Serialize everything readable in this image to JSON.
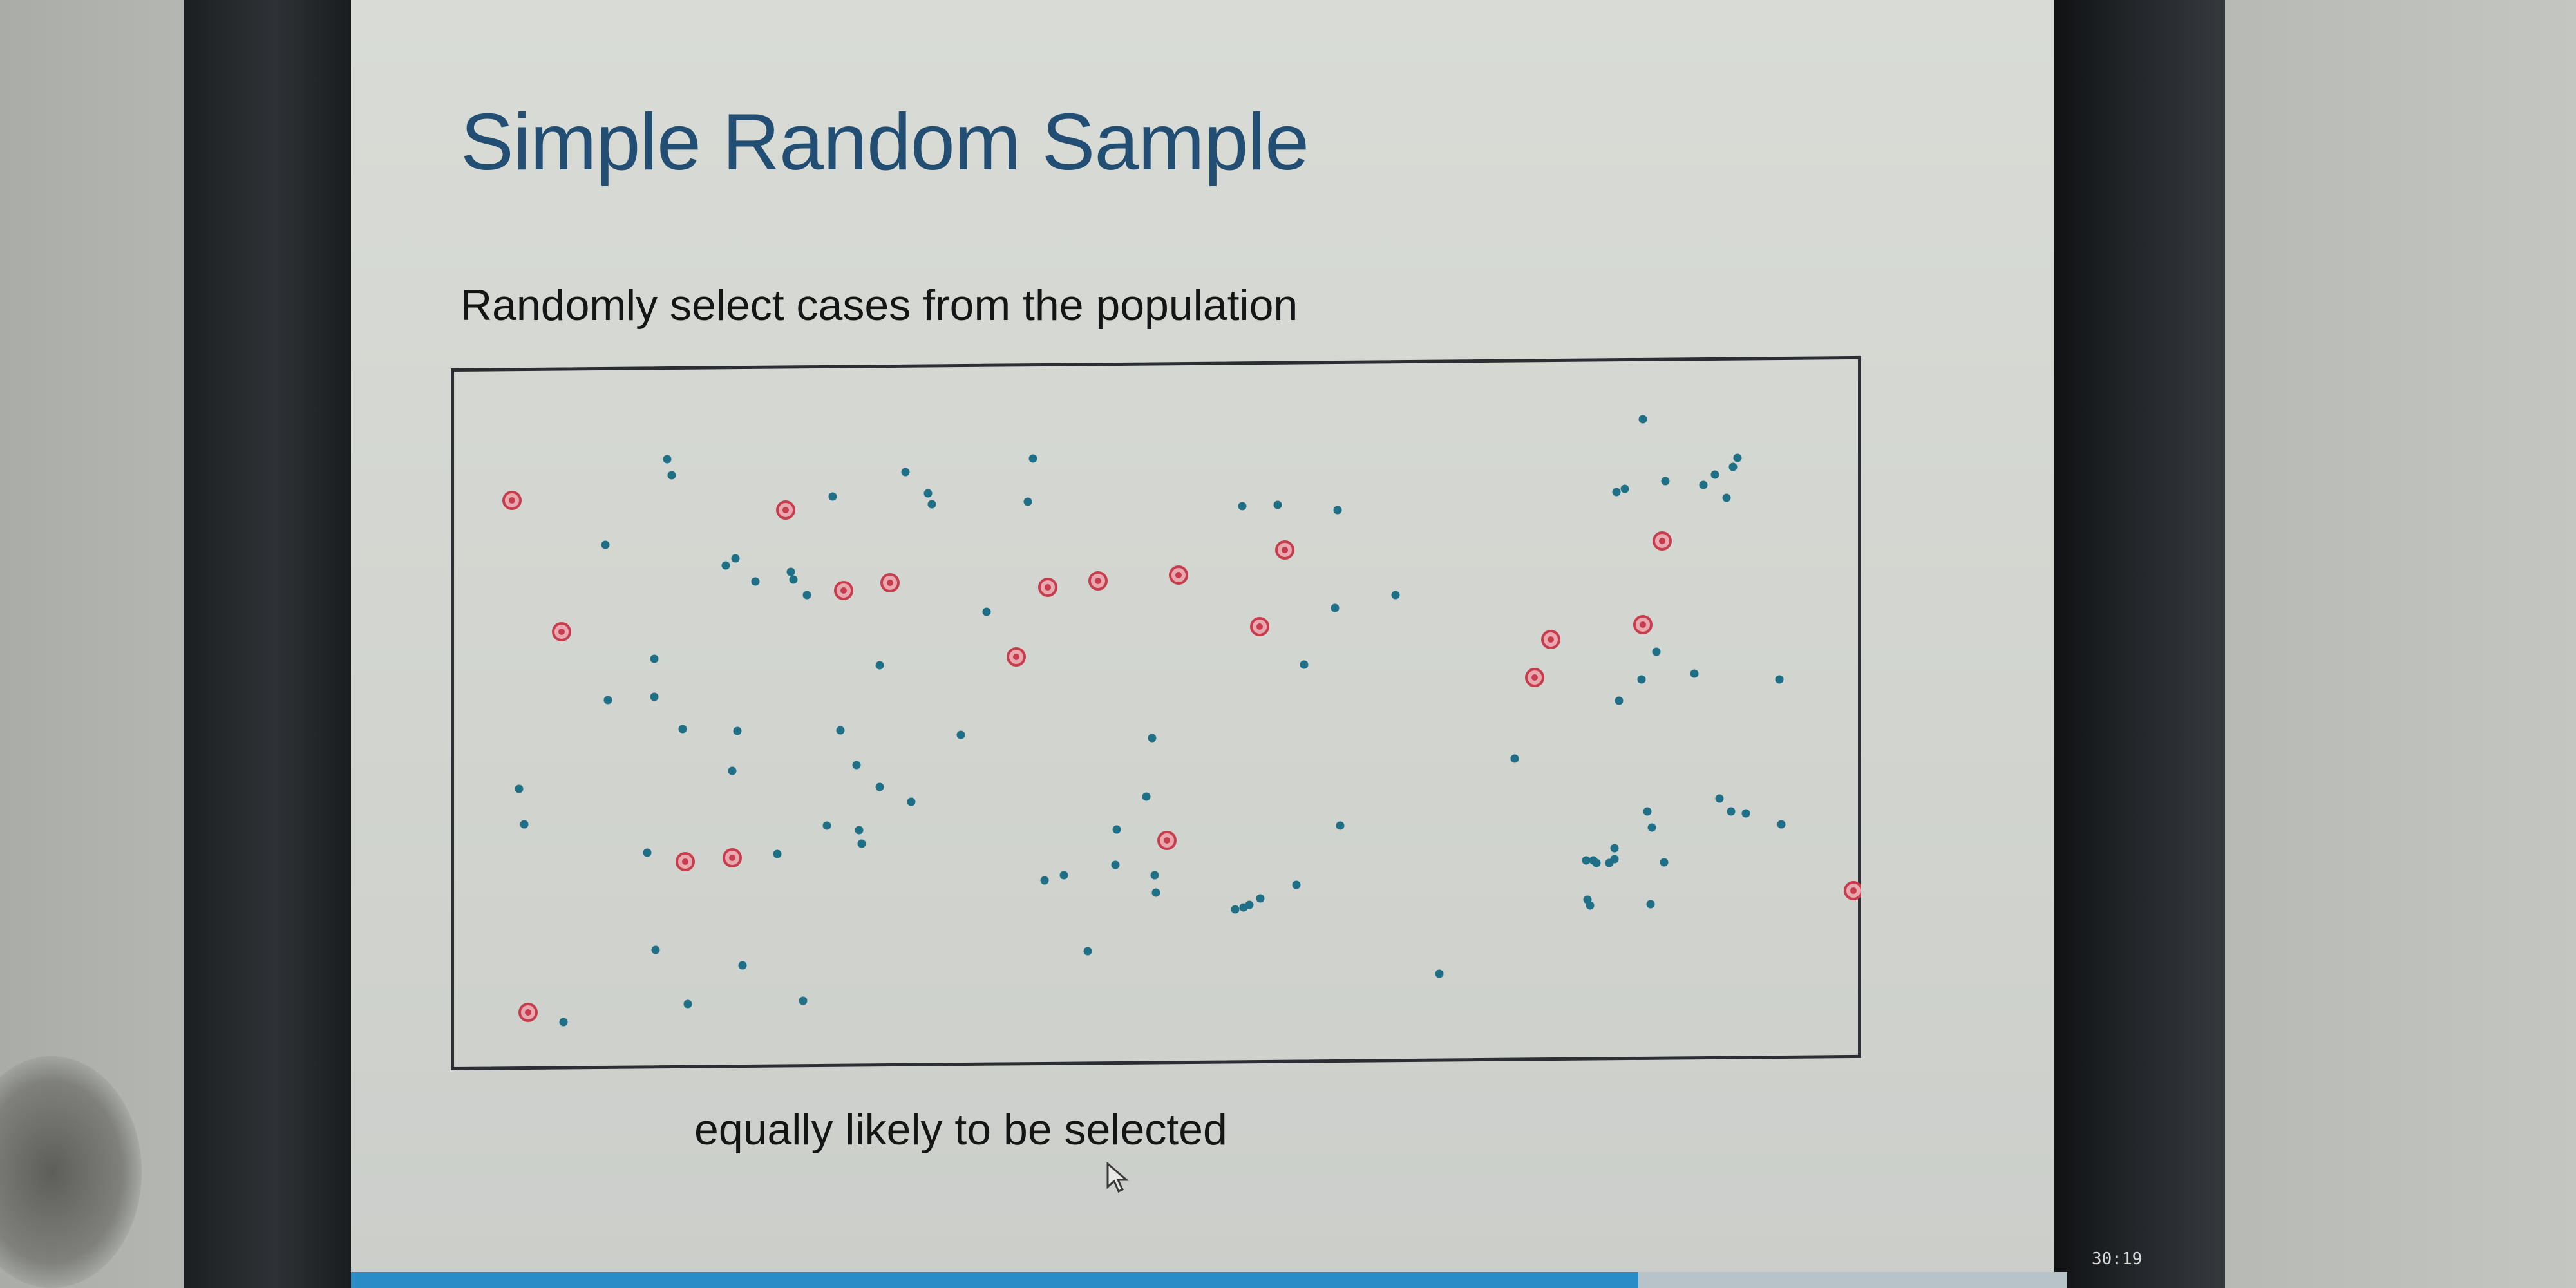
{
  "slide": {
    "title": "Simple Random Sample",
    "subtitle": "Randomly select cases from the population",
    "caption": "equally likely to be selected"
  },
  "video": {
    "elapsed_time": "30:19",
    "progress": 0.75
  },
  "colors": {
    "population_dot": "#1f6f86",
    "sampled_ring": "#c63d4d",
    "title": "#234e73"
  },
  "population": {
    "unsampled_count": 94,
    "sampled_count": 20
  }
}
